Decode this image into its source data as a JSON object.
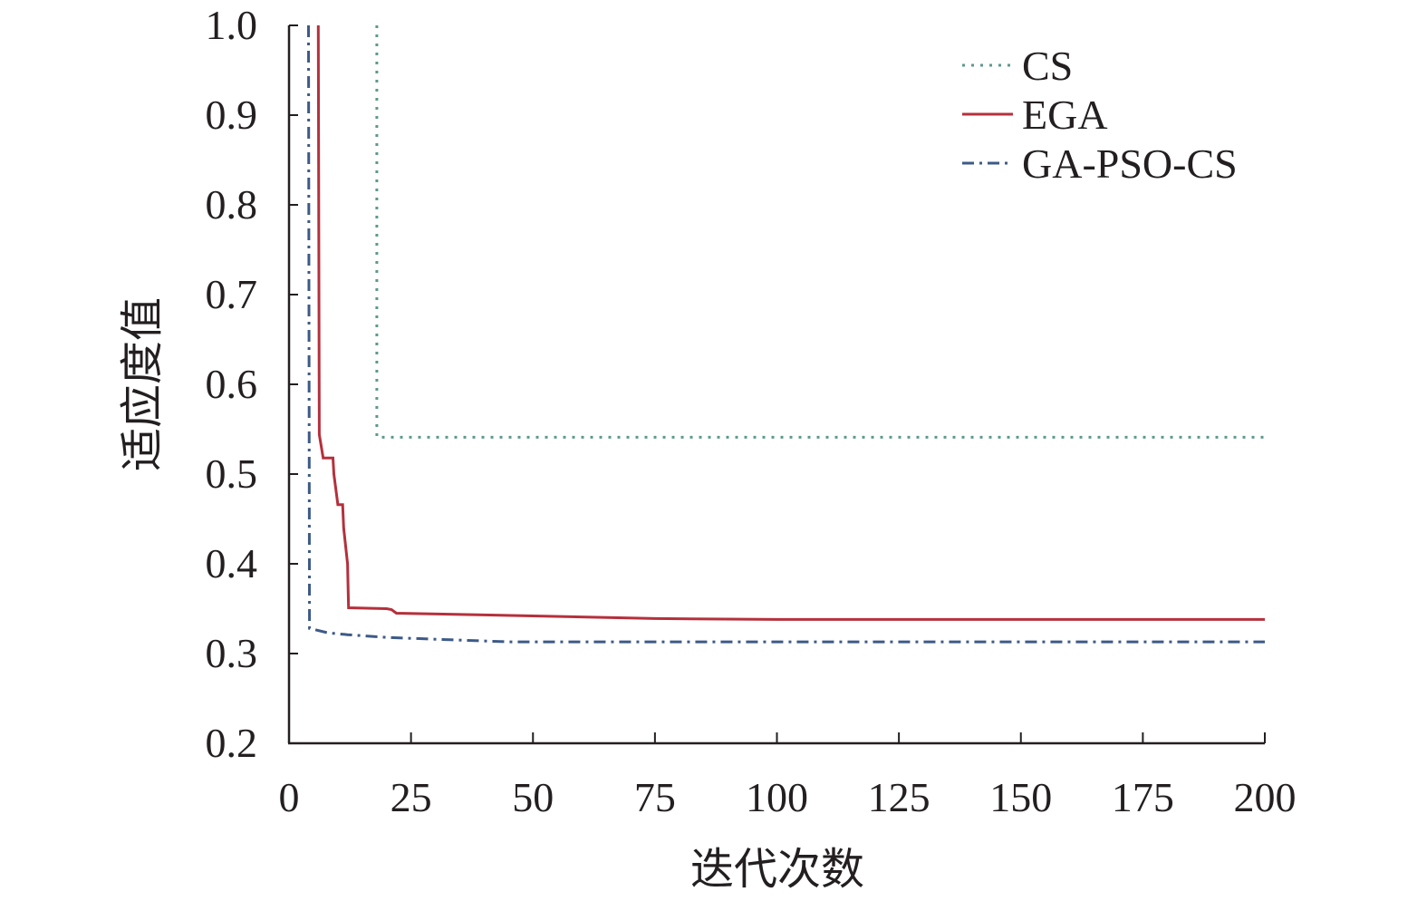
{
  "chart_data": {
    "type": "line",
    "xlabel": "迭代次数",
    "ylabel": "适应度值",
    "xlim": [
      0,
      200
    ],
    "ylim": [
      0.2,
      1.0
    ],
    "x_ticks": [
      0,
      25,
      50,
      75,
      100,
      125,
      150,
      175,
      200
    ],
    "x_tick_labels": [
      "0",
      "25",
      "50",
      "75",
      "100",
      "125",
      "150",
      "175",
      "200"
    ],
    "y_ticks": [
      0.2,
      0.3,
      0.4,
      0.5,
      0.6,
      0.7,
      0.8,
      0.9,
      1.0
    ],
    "y_tick_labels": [
      "0.2",
      "0.3",
      "0.4",
      "0.5",
      "0.6",
      "0.7",
      "0.8",
      "0.9",
      "1.0"
    ],
    "grid": false,
    "legend_position": "top-right",
    "series": [
      {
        "name": "CS",
        "color": "#5b9a8b",
        "style": "dotted",
        "x": [
          18,
          18,
          200
        ],
        "y": [
          1.0,
          0.541,
          0.541
        ]
      },
      {
        "name": "EGA",
        "color": "#b5303c",
        "style": "solid",
        "x": [
          6,
          6.2,
          7,
          9,
          9.2,
          10,
          10.2,
          11,
          11.2,
          12,
          12.2,
          20,
          21,
          22,
          40,
          75,
          100,
          200
        ],
        "y": [
          1.0,
          0.544,
          0.518,
          0.518,
          0.5,
          0.466,
          0.466,
          0.466,
          0.44,
          0.4,
          0.351,
          0.35,
          0.349,
          0.345,
          0.343,
          0.339,
          0.338,
          0.338
        ]
      },
      {
        "name": "GA-PSO-CS",
        "color": "#3c5a87",
        "style": "dashdot",
        "x": [
          4,
          4.2,
          5,
          8,
          12,
          20,
          30,
          45,
          75,
          100,
          200
        ],
        "y": [
          1.0,
          0.328,
          0.327,
          0.323,
          0.321,
          0.318,
          0.316,
          0.313,
          0.313,
          0.313,
          0.313
        ]
      }
    ]
  }
}
